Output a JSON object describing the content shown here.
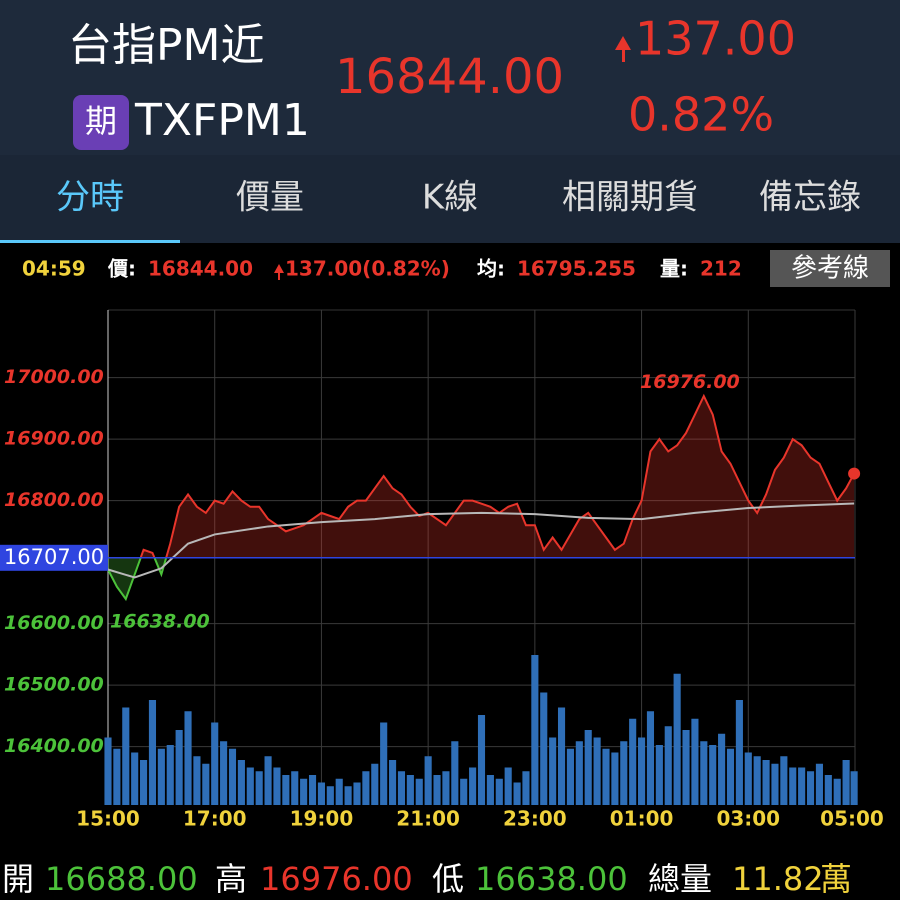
{
  "header": {
    "title": "台指PM近",
    "badge": "期",
    "code": "TXFPM1",
    "price": "16844.00",
    "change": "137.00",
    "change_pct": "0.82%"
  },
  "tabs": {
    "items": [
      "分時",
      "價量",
      "K線",
      "相關期貨",
      "備忘錄"
    ],
    "active": 0
  },
  "info": {
    "time": "04:59",
    "price_label": "價:",
    "price": "16844.00",
    "change": "137.00(0.82%)",
    "avg_label": "均:",
    "avg": "16795.255",
    "vol_label": "量:",
    "vol": "212",
    "button": "參考線"
  },
  "chart_data": {
    "type": "line",
    "xlim": [
      "15:00",
      "05:00"
    ],
    "xticks": [
      "15:00",
      "17:00",
      "19:00",
      "21:00",
      "23:00",
      "01:00",
      "03:00",
      "05:00"
    ],
    "ylim": [
      16305,
      17110
    ],
    "yticks": [
      {
        "value": 16400,
        "label": "16400.00"
      },
      {
        "value": 16500,
        "label": "16500.00"
      },
      {
        "value": 16600,
        "label": "16600.00"
      },
      {
        "value": 16800,
        "label": "16800.00"
      },
      {
        "value": 16900,
        "label": "16900.00"
      },
      {
        "value": 17000,
        "label": "17000.00"
      }
    ],
    "reference": {
      "value": 16707,
      "label": "16707.00",
      "color": "#2f45e0"
    },
    "high": {
      "value": 16976,
      "label": "16976.00"
    },
    "low": {
      "value": 16638,
      "label": "16638.00"
    },
    "up_color": "#e8352b",
    "down_color": "#4cc23a",
    "grid": true,
    "x": [
      "15:00",
      "15:10",
      "15:20",
      "15:30",
      "15:40",
      "15:50",
      "16:00",
      "16:10",
      "16:20",
      "16:30",
      "16:40",
      "16:50",
      "17:00",
      "17:10",
      "17:20",
      "17:30",
      "17:40",
      "17:50",
      "18:00",
      "18:10",
      "18:20",
      "18:30",
      "18:40",
      "18:50",
      "19:00",
      "19:10",
      "19:20",
      "19:30",
      "19:40",
      "19:50",
      "20:00",
      "20:10",
      "20:20",
      "20:30",
      "20:40",
      "20:50",
      "21:00",
      "21:10",
      "21:20",
      "21:30",
      "21:40",
      "21:50",
      "22:00",
      "22:10",
      "22:20",
      "22:30",
      "22:40",
      "22:50",
      "23:00",
      "23:10",
      "23:20",
      "23:30",
      "23:40",
      "23:50",
      "00:00",
      "00:10",
      "00:20",
      "00:30",
      "00:40",
      "00:50",
      "01:00",
      "01:10",
      "01:20",
      "01:30",
      "01:40",
      "01:50",
      "02:00",
      "02:10",
      "02:20",
      "02:30",
      "02:40",
      "02:50",
      "03:00",
      "03:10",
      "03:20",
      "03:30",
      "03:40",
      "03:50",
      "04:00",
      "04:10",
      "04:20",
      "04:30",
      "04:40",
      "04:50",
      "04:59"
    ],
    "series": [
      {
        "values": [
          16688,
          16660,
          16640,
          16680,
          16720,
          16715,
          16680,
          16730,
          16790,
          16810,
          16790,
          16780,
          16800,
          16795,
          16815,
          16800,
          16790,
          16790,
          16770,
          16760,
          16750,
          16755,
          16760,
          16770,
          16780,
          16775,
          16770,
          16790,
          16800,
          16800,
          16820,
          16840,
          16820,
          16810,
          16790,
          16775,
          16780,
          16770,
          16760,
          16780,
          16800,
          16800,
          16795,
          16790,
          16780,
          16790,
          16795,
          16760,
          16760,
          16720,
          16740,
          16720,
          16745,
          16770,
          16780,
          16760,
          16740,
          16720,
          16730,
          16770,
          16800,
          16880,
          16900,
          16880,
          16890,
          16910,
          16940,
          16970,
          16940,
          16880,
          16860,
          16830,
          16800,
          16780,
          16810,
          16850,
          16870,
          16900,
          16890,
          16870,
          16860,
          16830,
          16800,
          16820,
          16844
        ]
      }
    ],
    "average": {
      "color": "#b8b8b8",
      "x": [
        "15:00",
        "15:30",
        "16:00",
        "16:30",
        "17:00",
        "18:00",
        "19:00",
        "20:00",
        "21:00",
        "22:00",
        "23:00",
        "00:00",
        "01:00",
        "02:00",
        "03:00",
        "04:00",
        "04:59"
      ],
      "values": [
        16688,
        16675,
        16690,
        16730,
        16745,
        16758,
        16765,
        16770,
        16778,
        16780,
        16778,
        16772,
        16770,
        16780,
        16788,
        16792,
        16795.255
      ]
    },
    "volume": {
      "color": "#2f6fb8",
      "values": [
        1800,
        1500,
        2600,
        1400,
        1200,
        2800,
        1500,
        1600,
        2000,
        2500,
        1300,
        1100,
        2200,
        1700,
        1500,
        1200,
        1000,
        900,
        1300,
        1000,
        800,
        900,
        700,
        800,
        600,
        500,
        700,
        500,
        600,
        900,
        1100,
        2200,
        1200,
        900,
        800,
        700,
        1300,
        800,
        900,
        1700,
        700,
        1000,
        2400,
        800,
        700,
        1000,
        600,
        900,
        4000,
        3000,
        1800,
        2600,
        1500,
        1700,
        2000,
        1800,
        1500,
        1400,
        1700,
        2300,
        1800,
        2500,
        1600,
        2100,
        3500,
        2000,
        2300,
        1700,
        1600,
        1900,
        1500,
        2800,
        1400,
        1300,
        1200,
        1100,
        1300,
        1000,
        1000,
        900,
        1100,
        800,
        700,
        1200,
        900
      ]
    }
  },
  "footer": {
    "open_label": "開",
    "open": "16688.00",
    "high_label": "高",
    "high": "16976.00",
    "low_label": "低",
    "low": "16638.00",
    "vol_label": "總量",
    "vol": "11.82",
    "vol_unit": "萬"
  }
}
